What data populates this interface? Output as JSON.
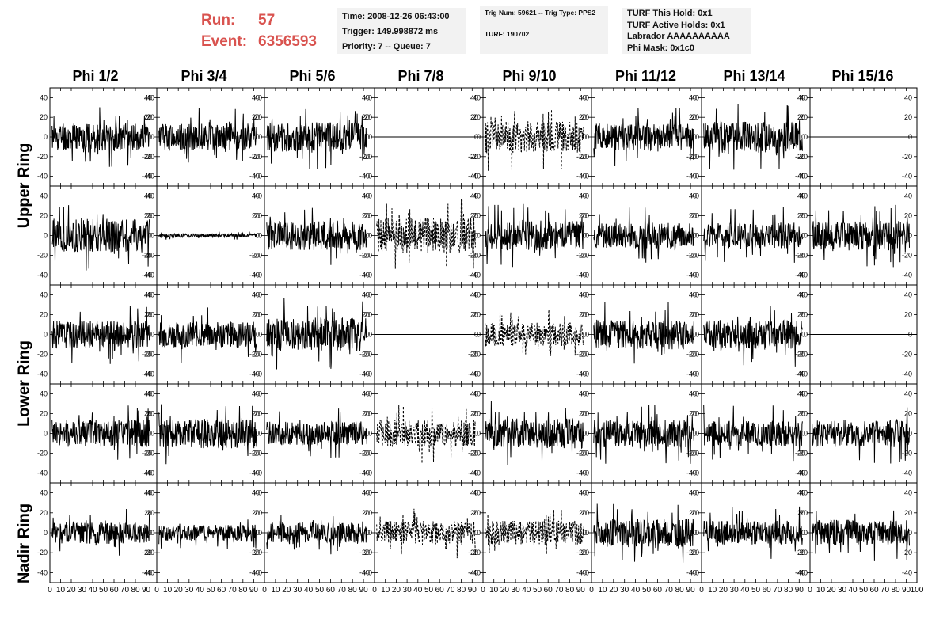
{
  "header": {
    "run_label": "Run:",
    "run_value": "57",
    "event_label": "Event:",
    "event_value": "6356593",
    "box1": {
      "time": "Time: 2008-12-26 06:43:00",
      "trigger": "Trigger: 149.998872 ms",
      "priority": "Priority: 7 -- Queue: 7"
    },
    "box2": {
      "trig": "Trig Num: 59621 -- Trig Type: PPS2",
      "turf": "TURF: 190702"
    },
    "box3": {
      "this_hold": "TURF This Hold: 0x1",
      "active_holds": "TURF Active Holds: 0x1",
      "labrador": "Labrador AAAAAAAAAA",
      "phi_mask": "Phi Mask: 0x1c0"
    }
  },
  "columns": [
    "Phi 1/2",
    "Phi 3/4",
    "Phi 5/6",
    "Phi 7/8",
    "Phi 9/10",
    "Phi 11/12",
    "Phi 13/14",
    "Phi 15/16"
  ],
  "ring_labels": [
    "Upper Ring",
    "Lower Ring",
    "Nadir Ring"
  ],
  "colors": {
    "trace": "#000000",
    "frame": "#000000",
    "run_text": "#d9534f",
    "box_bg": "#f2f2f2"
  },
  "chart_data": {
    "type": "line",
    "rows": 5,
    "cols": 8,
    "x_range": [
      0,
      100
    ],
    "y_range": [
      -50,
      50
    ],
    "y_ticks": [
      -40,
      -20,
      0,
      20,
      40
    ],
    "x_ticks": [
      0,
      10,
      20,
      30,
      40,
      50,
      60,
      70,
      80,
      90,
      100
    ],
    "x_tick_labels_bottom": "0 10 20 30 40 50 60 70 80 90 100",
    "samples_per_trace": 260,
    "traces": [
      [
        {
          "amp": 14,
          "style": "solid",
          "seed": 11
        },
        {
          "amp": 14,
          "style": "solid",
          "seed": 12
        },
        {
          "amp": 15,
          "style": "solid",
          "seed": 13
        },
        {
          "amp": 0,
          "style": "flat",
          "seed": 14
        },
        {
          "amp": 16,
          "style": "dashed",
          "seed": 15
        },
        {
          "amp": 14,
          "style": "solid",
          "seed": 16
        },
        {
          "amp": 16,
          "style": "solid",
          "seed": 17
        },
        {
          "amp": 0,
          "style": "flat",
          "seed": 18
        }
      ],
      [
        {
          "amp": 17,
          "style": "solid",
          "seed": 21
        },
        {
          "amp": 2,
          "style": "solid",
          "seed": 22
        },
        {
          "amp": 15,
          "style": "solid",
          "seed": 23
        },
        {
          "amp": 18,
          "style": "dashed",
          "seed": 24
        },
        {
          "amp": 15,
          "style": "solid",
          "seed": 25
        },
        {
          "amp": 13,
          "style": "solid",
          "seed": 26
        },
        {
          "amp": 13,
          "style": "solid",
          "seed": 27
        },
        {
          "amp": 15,
          "style": "solid",
          "seed": 28
        }
      ],
      [
        {
          "amp": 14,
          "style": "solid",
          "seed": 31
        },
        {
          "amp": 13,
          "style": "solid",
          "seed": 32
        },
        {
          "amp": 17,
          "style": "solid",
          "seed": 33
        },
        {
          "amp": 0,
          "style": "flat",
          "seed": 34
        },
        {
          "amp": 12,
          "style": "dashed",
          "seed": 35
        },
        {
          "amp": 15,
          "style": "solid",
          "seed": 36
        },
        {
          "amp": 15,
          "style": "solid",
          "seed": 37
        },
        {
          "amp": 0,
          "style": "flat",
          "seed": 38
        }
      ],
      [
        {
          "amp": 14,
          "style": "solid",
          "seed": 41
        },
        {
          "amp": 15,
          "style": "solid",
          "seed": 42
        },
        {
          "amp": 12,
          "style": "solid",
          "seed": 43
        },
        {
          "amp": 14,
          "style": "dashed",
          "seed": 44
        },
        {
          "amp": 15,
          "style": "solid",
          "seed": 45
        },
        {
          "amp": 14,
          "style": "solid",
          "seed": 46
        },
        {
          "amp": 13,
          "style": "solid",
          "seed": 47
        },
        {
          "amp": 14,
          "style": "solid",
          "seed": 48
        }
      ],
      [
        {
          "amp": 11,
          "style": "solid",
          "seed": 51
        },
        {
          "amp": 8,
          "style": "solid",
          "seed": 52
        },
        {
          "amp": 10,
          "style": "solid",
          "seed": 53
        },
        {
          "amp": 12,
          "style": "dashed",
          "seed": 54
        },
        {
          "amp": 12,
          "style": "dashed",
          "seed": 55
        },
        {
          "amp": 14,
          "style": "solid",
          "seed": 56
        },
        {
          "amp": 12,
          "style": "solid",
          "seed": 57
        },
        {
          "amp": 13,
          "style": "solid",
          "seed": 58
        }
      ]
    ]
  }
}
